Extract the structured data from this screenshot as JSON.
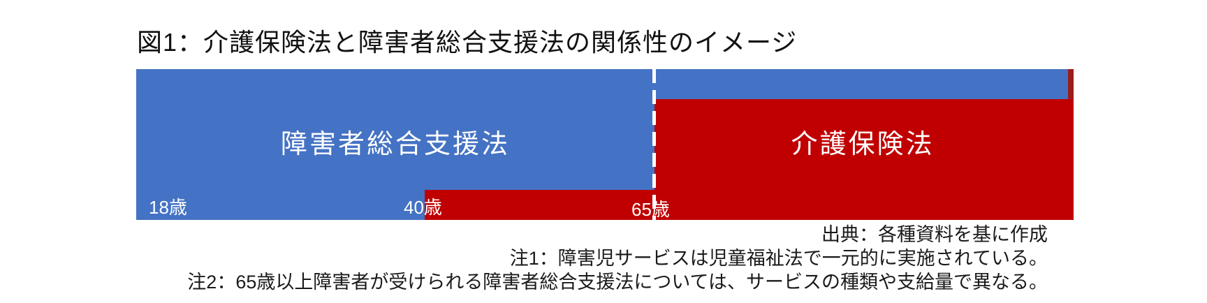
{
  "title": "図1：介護保険法と障害者総合支援法の関係性のイメージ",
  "diagram": {
    "left_region": {
      "label": "障害者総合支援法",
      "color": "#4472C4"
    },
    "right_region": {
      "label": "介護保険法",
      "color": "#C00000"
    },
    "overlaps": {
      "bottom_left_strip_color": "#C00000",
      "top_right_band_color": "#4472C4"
    },
    "divider": {
      "style": "dashed-vertical",
      "color": "#FFFFFF",
      "at_age": "65歳"
    },
    "age_markers": [
      {
        "label": "18歳"
      },
      {
        "label": "40歳"
      },
      {
        "label": "65歳"
      }
    ]
  },
  "notes": {
    "source": "出典：各種資料を基に作成",
    "note1": "注1：障害児サービスは児童福祉法で一元的に実施されている。",
    "note2": "注2：65歳以上障害者が受けられる障害者総合支援法については、サービスの種類や支給量で異なる。"
  }
}
